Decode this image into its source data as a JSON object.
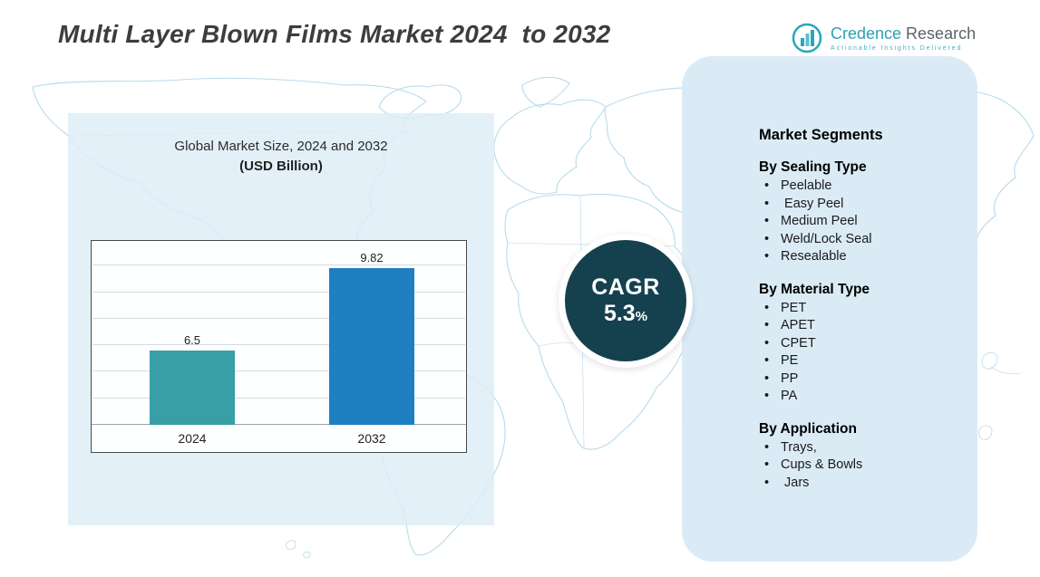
{
  "title": "Multi Layer Blown Films Market 2024  to 2032",
  "logo": {
    "name_primary": "Credence",
    "name_secondary": " Research",
    "tagline": "Actionable Insights Delivered"
  },
  "chart_data": {
    "type": "bar",
    "title": "Global Market Size, 2024 and 2032",
    "subtitle": "(USD Billion)",
    "categories": [
      "2024",
      "2032"
    ],
    "values": [
      6.5,
      9.82
    ],
    "value_labels": [
      "6.5",
      "9.82"
    ],
    "series_name": "Global Market Size (USD Billion)",
    "bar_colors": [
      "#389fa6",
      "#1e7fc1"
    ],
    "xlabel": "",
    "ylabel": "",
    "ylim": [
      3.5,
      11
    ],
    "grid": true,
    "legend": false
  },
  "cagr": {
    "label": "CAGR",
    "value": "5.3",
    "unit": "%"
  },
  "segments": {
    "heading": "Market Segments",
    "groups": [
      {
        "title": "By Sealing Type",
        "items": [
          "Peelable",
          " Easy Peel",
          "Medium Peel",
          "Weld/Lock Seal",
          "Resealable"
        ]
      },
      {
        "title": "By Material Type",
        "items": [
          "PET",
          "APET",
          "CPET",
          "PE",
          "PP",
          "PA"
        ]
      },
      {
        "title": "By Application",
        "items": [
          "Trays,",
          "Cups & Bowls",
          " Jars"
        ]
      }
    ]
  },
  "colors": {
    "accent_teal": "#389fa6",
    "accent_blue": "#1e7fc1",
    "cagr_circle": "#15414f",
    "panel_bg": "#d9eaf5",
    "map_line": "#b7dbec",
    "title_text": "#3d3d3d"
  }
}
